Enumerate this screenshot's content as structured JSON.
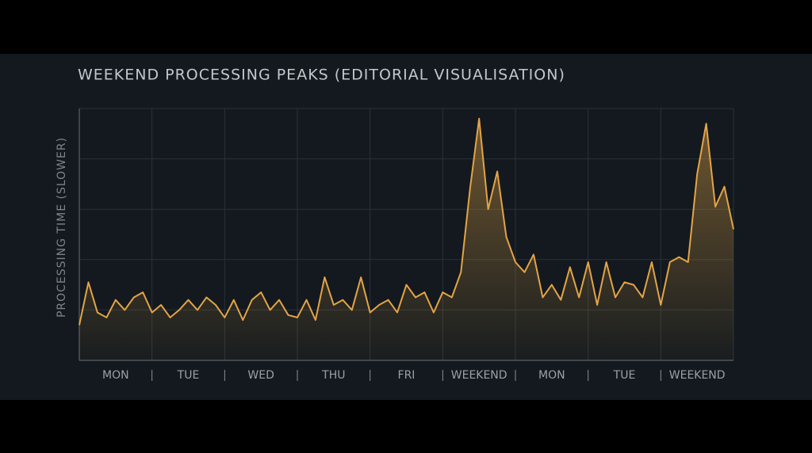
{
  "chart_data": {
    "type": "line",
    "title": "WEEKEND PROCESSING PEAKS (EDITORIAL VISUALISATION)",
    "y_label": "PROCESSING TIME (SLOWER)",
    "categories": [
      "MON",
      "TUE",
      "WED",
      "THU",
      "FRI",
      "WEEKEND",
      "MON",
      "TUE",
      "WEEKEND"
    ],
    "x": [
      0,
      0.125,
      0.25,
      0.375,
      0.5,
      0.625,
      0.75,
      0.875,
      1,
      1.125,
      1.25,
      1.375,
      1.5,
      1.625,
      1.75,
      1.875,
      2,
      2.125,
      2.25,
      2.375,
      2.5,
      2.625,
      2.75,
      2.875,
      3,
      3.125,
      3.25,
      3.375,
      3.5,
      3.625,
      3.75,
      3.875,
      4,
      4.125,
      4.25,
      4.375,
      4.5,
      4.625,
      4.75,
      4.875,
      5,
      5.125,
      5.25,
      5.375,
      5.5,
      5.625,
      5.75,
      5.875,
      6,
      6.125,
      6.25,
      6.375,
      6.5,
      6.625,
      6.75,
      6.875,
      7,
      7.125,
      7.25,
      7.375,
      7.5,
      7.625,
      7.75,
      7.875,
      8,
      8.125,
      8.25,
      8.375,
      8.5,
      8.625,
      8.75,
      8.875,
      9
    ],
    "series": [
      {
        "color": "#e3a446",
        "values": [
          14,
          31,
          19,
          17,
          24,
          20,
          25,
          27,
          19,
          22,
          17,
          20,
          24,
          20,
          25,
          22,
          17,
          24,
          16,
          24,
          27,
          20,
          24,
          18,
          17,
          24,
          16,
          33,
          22,
          24,
          20,
          33,
          19,
          22,
          24,
          19,
          30,
          25,
          27,
          19,
          27,
          25,
          35,
          68,
          96,
          60,
          75,
          49,
          39,
          35,
          42,
          25,
          30,
          24,
          37,
          25,
          39,
          22,
          39,
          25,
          31,
          30,
          25,
          39,
          22,
          39,
          41,
          39,
          74,
          94,
          61,
          69,
          52
        ]
      }
    ],
    "xlim": [
      0,
      9
    ],
    "ylim": [
      0,
      100
    ],
    "yticks": [
      0,
      20,
      40,
      60,
      80,
      100
    ],
    "grid": true
  }
}
